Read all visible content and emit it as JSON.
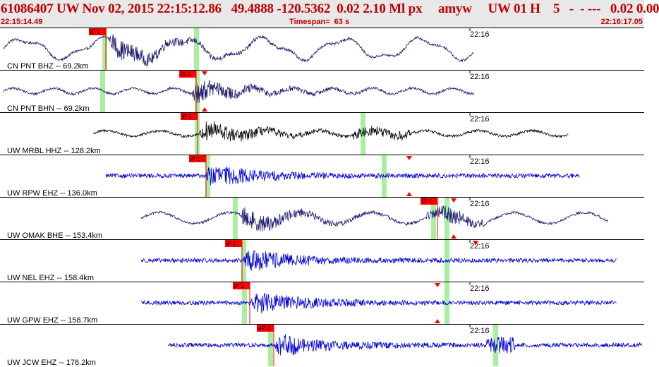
{
  "header": {
    "title": "61086407 UW Nov 02, 2015 22:15:12.86   49.4888 -120.5362  0.02 2.10 Ml px     amyw     UW 01 H    5   -  - ---   0.02 0.00",
    "start_time": "22:15:14.49",
    "timespan": "Timespan=  63 s",
    "end_time": "22:16:17.05"
  },
  "colors": {
    "header_text": "#c00000",
    "header_bg": "#e8e8e8",
    "trace_navy": "#1c1c6e",
    "trace_black": "#000000",
    "trace_blue": "#0000d8",
    "pick_green": "#a8f0a0",
    "pick_red": "#ff0000"
  },
  "panels": [
    {
      "label": "CN PNT BHZ -- 69.2km",
      "time_label": "22:16",
      "color": "navy",
      "pick": "iP 1",
      "arrow_top": false,
      "arrow_bottom": false
    },
    {
      "label": "CN PNT BHN -- 69.2km",
      "time_label": "22:16",
      "color": "navy",
      "pick": "iS 1",
      "arrow_top": true,
      "arrow_bottom": true
    },
    {
      "label": "UW MRBL HHZ -- 128.2km",
      "time_label": "22:16",
      "color": "black",
      "pick": "iP 1",
      "arrow_top": false,
      "arrow_bottom": false
    },
    {
      "label": "UW RPW EHZ -- 136.0km",
      "time_label": "22:16",
      "color": "blue",
      "pick": "iP 1",
      "arrow_top": true,
      "arrow_bottom": true
    },
    {
      "label": "UW OMAK BHE -- 153.4km",
      "time_label": "22:16",
      "color": "navy",
      "pick": "iS 1",
      "arrow_top": true,
      "arrow_bottom": true
    },
    {
      "label": "UW NEL EHZ -- 158.4km",
      "time_label": "22:16",
      "color": "blue",
      "pick": "iP 1",
      "arrow_top": true,
      "arrow_bottom": false
    },
    {
      "label": "UW GPW EHZ -- 158.7km",
      "time_label": "22:16",
      "color": "blue",
      "pick": "iP 1",
      "arrow_top": true,
      "arrow_bottom": true
    },
    {
      "label": "UW JCW EHZ -- 176.2km",
      "time_label": "22:16",
      "color": "blue",
      "pick": "eP 2",
      "arrow_top": false,
      "arrow_bottom": false
    }
  ]
}
